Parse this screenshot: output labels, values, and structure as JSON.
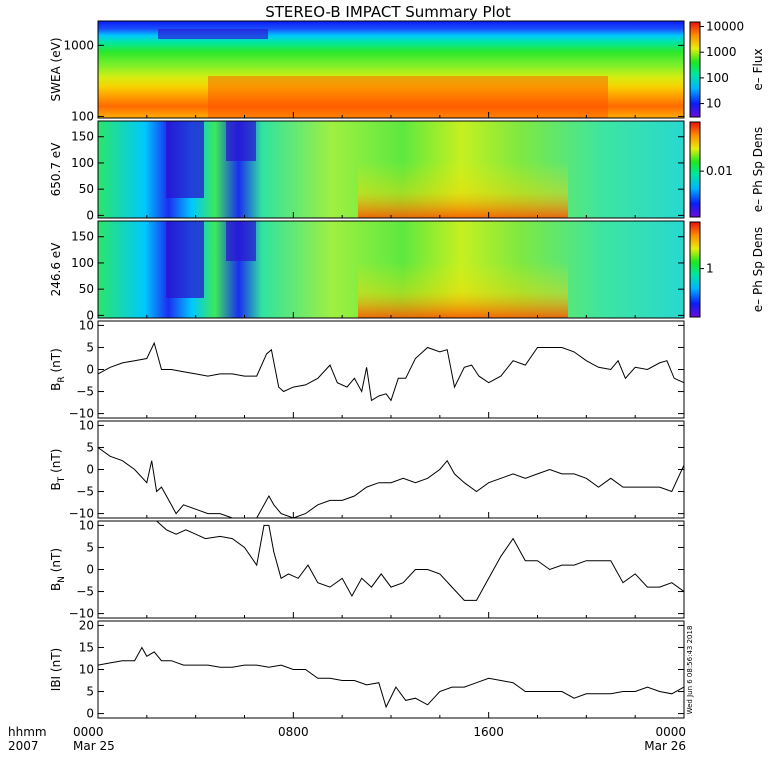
{
  "title": "STEREO-B IMPACT Summary Plot",
  "timestamp": "Wed Jun  6 08:56:43 2018",
  "x_axis": {
    "corner_top": "hhmm",
    "corner_bottom": "2007",
    "ticks": [
      {
        "top": "0000",
        "bottom": "Mar 25",
        "hour": 0
      },
      {
        "top": "0800",
        "bottom": "",
        "hour": 8
      },
      {
        "top": "1600",
        "bottom": "",
        "hour": 16
      },
      {
        "top": "0000",
        "bottom": "Mar 26",
        "hour": 24
      }
    ]
  },
  "colors": {
    "trace": "#000000",
    "frame": "#000000"
  },
  "chart_data": [
    {
      "type": "heatmap",
      "name": "swea",
      "ylabel": "SWEA (eV)",
      "y_scale": "log",
      "ylim": [
        95,
        2200
      ],
      "yticks": [
        {
          "v": 100,
          "t": "100"
        },
        {
          "v": 1000,
          "t": "1000"
        }
      ],
      "colorbar_label": "e– Flux",
      "colorbar_scale": "log",
      "colorbar_range": [
        3,
        15000
      ],
      "colorbar_ticks": [
        {
          "v": 10,
          "t": "10"
        },
        {
          "v": 100,
          "t": "100"
        },
        {
          "v": 1000,
          "t": "1000"
        },
        {
          "v": 10000,
          "t": "10000"
        }
      ]
    },
    {
      "type": "heatmap",
      "name": "pad650",
      "ylabel": "650.7 eV",
      "y_scale": "linear",
      "ylim": [
        -5,
        180
      ],
      "yticks": [
        {
          "v": 0,
          "t": "0"
        },
        {
          "v": 50,
          "t": "50"
        },
        {
          "v": 100,
          "t": "100"
        },
        {
          "v": 150,
          "t": "150"
        }
      ],
      "colorbar_label": "e– Ph Sp Dens",
      "colorbar_scale": "log",
      "colorbar_range": [
        0.0008,
        0.15
      ],
      "colorbar_ticks": [
        {
          "v": 0.01,
          "t": "0.01"
        }
      ]
    },
    {
      "type": "heatmap",
      "name": "pad246",
      "ylabel": "246.6 eV",
      "y_scale": "linear",
      "ylim": [
        -5,
        180
      ],
      "yticks": [
        {
          "v": 0,
          "t": "0"
        },
        {
          "v": 50,
          "t": "50"
        },
        {
          "v": 100,
          "t": "100"
        },
        {
          "v": 150,
          "t": "150"
        }
      ],
      "colorbar_label": "e– Ph Sp Dens",
      "colorbar_scale": "log",
      "colorbar_range": [
        0.06,
        15
      ],
      "colorbar_ticks": [
        {
          "v": 1,
          "t": "1"
        }
      ]
    },
    {
      "type": "line",
      "name": "br",
      "ylabel": {
        "base": "B",
        "sub": "R",
        "unit": " (nT)"
      },
      "ylim": [
        -11,
        11
      ],
      "yticks": [
        {
          "v": -10,
          "t": "−10"
        },
        {
          "v": -5,
          "t": "−5"
        },
        {
          "v": 0,
          "t": "0"
        },
        {
          "v": 5,
          "t": "5"
        },
        {
          "v": 10,
          "t": "10"
        }
      ],
      "x": [
        0,
        0.5,
        1.0,
        1.5,
        2.0,
        2.3,
        2.6,
        3.0,
        3.5,
        4.0,
        4.5,
        5.0,
        5.5,
        6.0,
        6.5,
        6.9,
        7.1,
        7.4,
        7.6,
        8.0,
        8.5,
        9.0,
        9.5,
        9.8,
        10.2,
        10.5,
        10.8,
        11.0,
        11.2,
        11.5,
        11.8,
        12.0,
        12.3,
        12.6,
        13.0,
        13.5,
        14.0,
        14.3,
        14.6,
        15.0,
        15.3,
        15.6,
        16.0,
        16.5,
        17.0,
        17.5,
        18.0,
        18.5,
        19.0,
        19.5,
        20.0,
        20.5,
        21.0,
        21.3,
        21.6,
        22.0,
        22.5,
        23.0,
        23.3,
        23.6,
        24.0
      ],
      "values": [
        -1,
        0.5,
        1.5,
        2,
        2.5,
        6,
        0,
        0,
        -0.5,
        -1,
        -1.5,
        -1,
        -1,
        -1.5,
        -1.5,
        3.5,
        4.5,
        -4,
        -5,
        -4,
        -3.5,
        -2,
        1,
        -3,
        -4,
        -2,
        -5,
        0.5,
        -7,
        -6,
        -5.5,
        -7,
        -2,
        -2,
        2.5,
        5,
        4,
        4.5,
        -4,
        0.5,
        1,
        -1.5,
        -3,
        -1.5,
        2,
        1,
        5,
        5,
        5,
        4,
        2,
        0.5,
        0,
        2,
        -2,
        0.5,
        0,
        1.5,
        2,
        -2,
        -3
      ]
    },
    {
      "type": "line",
      "name": "bt",
      "ylabel": {
        "base": "B",
        "sub": "T",
        "unit": " (nT)"
      },
      "ylim": [
        -11,
        11
      ],
      "yticks": [
        {
          "v": -10,
          "t": "−10"
        },
        {
          "v": -5,
          "t": "−5"
        },
        {
          "v": 0,
          "t": "0"
        },
        {
          "v": 5,
          "t": "5"
        },
        {
          "v": 10,
          "t": "10"
        }
      ],
      "x": [
        0,
        0.5,
        1.0,
        1.5,
        2.0,
        2.2,
        2.4,
        2.6,
        3.0,
        3.2,
        3.5,
        4.0,
        4.5,
        5.0,
        5.5,
        6.0,
        6.5,
        7.0,
        7.2,
        7.5,
        8.0,
        8.5,
        9.0,
        9.5,
        10.0,
        10.5,
        11.0,
        11.5,
        12.0,
        12.5,
        13.0,
        13.5,
        14.0,
        14.3,
        14.6,
        15.0,
        15.5,
        16.0,
        16.5,
        17.0,
        17.5,
        18.0,
        18.5,
        19.0,
        19.5,
        20.0,
        20.5,
        21.0,
        21.5,
        22.0,
        22.5,
        23.0,
        23.5,
        24.0
      ],
      "values": [
        5,
        3,
        2,
        0,
        -3,
        2,
        -5,
        -4,
        -8,
        -10,
        -8,
        -9,
        -10,
        -10,
        -11,
        -11,
        -11,
        -6,
        -8,
        -10,
        -11,
        -10,
        -8,
        -7,
        -7,
        -6,
        -4,
        -3,
        -3,
        -2,
        -3,
        -2,
        0,
        2,
        -1,
        -3,
        -5,
        -3,
        -2,
        -1,
        -2,
        -1,
        0,
        -1,
        -1,
        -2,
        -4,
        -2,
        -4,
        -4,
        -4,
        -4,
        -5,
        1
      ]
    },
    {
      "type": "line",
      "name": "bn",
      "ylabel": {
        "base": "B",
        "sub": "N",
        "unit": " (nT)"
      },
      "ylim": [
        -11,
        11
      ],
      "yticks": [
        {
          "v": -10,
          "t": "−10"
        },
        {
          "v": -5,
          "t": "−5"
        },
        {
          "v": 0,
          "t": "0"
        },
        {
          "v": 5,
          "t": "5"
        },
        {
          "v": 10,
          "t": "10"
        }
      ],
      "x": [
        2.4,
        2.8,
        3.2,
        3.6,
        4.0,
        4.4,
        5.0,
        5.5,
        6.0,
        6.5,
        6.8,
        7.0,
        7.2,
        7.5,
        7.8,
        8.2,
        8.6,
        9.0,
        9.5,
        10.0,
        10.4,
        10.8,
        11.2,
        11.6,
        12.0,
        12.5,
        13.0,
        13.5,
        14.0,
        14.5,
        15.0,
        15.5,
        16.0,
        16.5,
        17.0,
        17.5,
        18.0,
        18.5,
        19.0,
        19.5,
        20.0,
        20.5,
        21.0,
        21.5,
        22.0,
        22.5,
        23.0,
        23.5,
        24.0
      ],
      "values": [
        11,
        9,
        8,
        9,
        8,
        7,
        7.5,
        7,
        5,
        1,
        10,
        10,
        4,
        -2,
        -1,
        -2,
        1,
        -3,
        -4,
        -2,
        -6,
        -2,
        -4,
        -1,
        -4,
        -3,
        0,
        0,
        -1,
        -4,
        -7,
        -7,
        -2,
        3,
        7,
        2,
        2,
        0,
        1,
        1,
        2,
        2,
        2,
        -3,
        -1,
        -4,
        -4,
        -3,
        -5
      ]
    },
    {
      "type": "line",
      "name": "bmag",
      "ylabel": {
        "base": "IBI",
        "sub": "",
        "unit": " (nT)"
      },
      "ylim": [
        -1,
        21
      ],
      "yticks": [
        {
          "v": 0,
          "t": "0"
        },
        {
          "v": 5,
          "t": "5"
        },
        {
          "v": 10,
          "t": "10"
        },
        {
          "v": 15,
          "t": "15"
        },
        {
          "v": 20,
          "t": "20"
        }
      ],
      "x": [
        0,
        0.5,
        1.0,
        1.5,
        1.8,
        2.0,
        2.3,
        2.6,
        3.0,
        3.5,
        4.0,
        4.5,
        5.0,
        5.5,
        6.0,
        6.5,
        7.0,
        7.5,
        8.0,
        8.5,
        9.0,
        9.5,
        10.0,
        10.5,
        11.0,
        11.5,
        11.8,
        12.2,
        12.6,
        13.0,
        13.5,
        14.0,
        14.5,
        15.0,
        15.5,
        16.0,
        16.5,
        17.0,
        17.5,
        18.0,
        18.5,
        19.0,
        19.5,
        20.0,
        20.5,
        21.0,
        21.5,
        22.0,
        22.5,
        23.0,
        23.5,
        24.0
      ],
      "values": [
        11,
        11.5,
        12,
        12,
        15,
        13,
        14,
        12,
        12,
        11,
        11,
        11,
        10.5,
        10.5,
        11,
        11,
        10.5,
        11,
        10,
        10,
        8,
        8,
        7.5,
        7.5,
        6.5,
        7,
        1.5,
        6,
        3,
        3.5,
        2,
        5,
        6,
        6,
        7,
        8,
        7.5,
        7,
        5,
        5,
        5,
        5,
        3.5,
        4.5,
        4.5,
        4.5,
        5,
        5,
        6,
        5,
        4.5,
        6
      ]
    }
  ]
}
